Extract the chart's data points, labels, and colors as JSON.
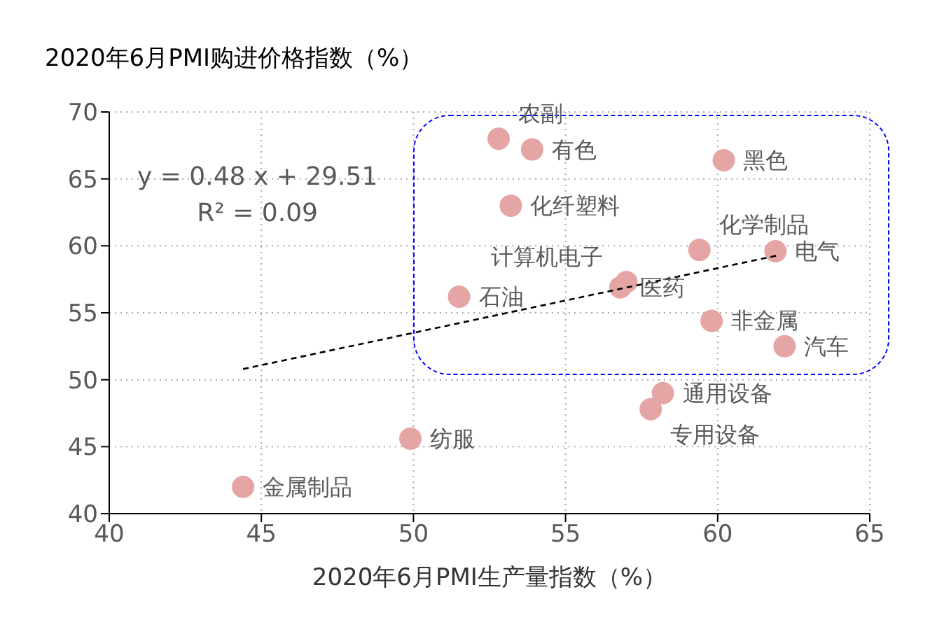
{
  "chart_data": {
    "type": "scatter",
    "ylabel": "2020年6月PMI购进价格指数（%）",
    "xlabel": "2020年6月PMI生产量指数（%）",
    "xlim": [
      40,
      65
    ],
    "xticks": [
      40,
      45,
      50,
      55,
      60,
      65
    ],
    "ylim": [
      40,
      70
    ],
    "yticks": [
      40,
      45,
      50,
      55,
      60,
      65,
      70
    ],
    "grid": true,
    "annotations": [
      "y = 0.48 x + 29.51",
      "R² = 0.09",
      {
        "text": "金属制品",
        "x": 44.4,
        "y": 42.0
      },
      {
        "text": "纺服",
        "x": 49.9,
        "y": 45.6
      },
      {
        "text": "石油",
        "x": 51.5,
        "y": 56.2
      },
      {
        "text": "农副",
        "x": 52.8,
        "y": 68.0
      },
      {
        "text": "有色",
        "x": 53.9,
        "y": 67.2
      },
      {
        "text": "化纤塑料",
        "x": 53.2,
        "y": 63.0
      },
      {
        "text": "医药",
        "x": 56.8,
        "y": 56.9
      },
      {
        "text": "计算机电子",
        "x": 57.0,
        "y": 57.3
      },
      {
        "text": "化学制品",
        "x": 59.4,
        "y": 59.7
      },
      {
        "text": "电气",
        "x": 61.9,
        "y": 59.6
      },
      {
        "text": "黑色",
        "x": 60.2,
        "y": 66.4
      },
      {
        "text": "非金属",
        "x": 59.8,
        "y": 54.4
      },
      {
        "text": "汽车",
        "x": 62.2,
        "y": 52.5
      },
      {
        "text": "通用设备",
        "x": 58.2,
        "y": 49.0
      },
      {
        "text": "专用设备",
        "x": 57.8,
        "y": 47.8
      }
    ],
    "series": [
      {
        "color": "#e6a5a5",
        "marker": "circle",
        "x": [
          44.4,
          49.9,
          51.5,
          52.8,
          53.9,
          53.2,
          56.8,
          57.0,
          59.4,
          61.9,
          60.2,
          59.8,
          62.2,
          58.2,
          57.8
        ],
        "values": [
          42.0,
          45.6,
          56.2,
          68.0,
          67.2,
          63.0,
          56.9,
          57.3,
          59.7,
          59.6,
          66.4,
          54.4,
          52.5,
          49.0,
          47.8
        ]
      },
      {
        "type": "line",
        "color": "#000000",
        "marker": "none",
        "line_style": "dashed",
        "x": [
          44.4,
          62.0
        ],
        "values": [
          50.8,
          59.3
        ]
      }
    ]
  }
}
